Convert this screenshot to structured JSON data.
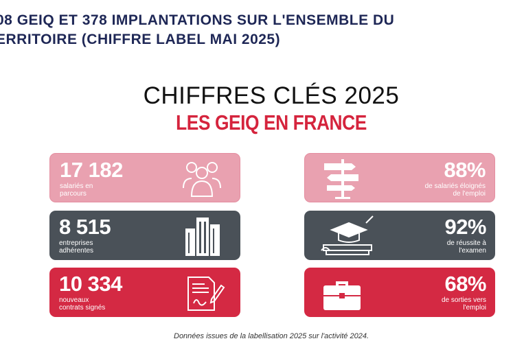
{
  "header": {
    "lines": [
      "08 GEIQ ET 378 IMPLANTATIONS SUR L'ENSEMBLE DU",
      "ERRITOIRE (CHIFFRE LABEL MAI 2025)"
    ]
  },
  "infographic": {
    "title": "CHIFFRES CLÉS 2025",
    "subtitle": "LES GEIQ EN FRANCE",
    "cards": [
      {
        "value": "17 182",
        "label": [
          "salariés en",
          "parcours"
        ]
      },
      {
        "value": "88%",
        "label": [
          "de salariés éloignés",
          "de l'emploi"
        ]
      },
      {
        "value": "8 515",
        "label": [
          "entreprises",
          "adhérentes"
        ]
      },
      {
        "value": "92%",
        "label": [
          "de réussite à",
          "l'examen"
        ]
      },
      {
        "value": "10 334",
        "label": [
          "nouveaux",
          "contrats signés"
        ]
      },
      {
        "value": "68%",
        "label": [
          "de sorties vers",
          "l'emploi"
        ]
      }
    ],
    "footnote": "Données issues de la labellisation 2025 sur l'activité 2024."
  }
}
